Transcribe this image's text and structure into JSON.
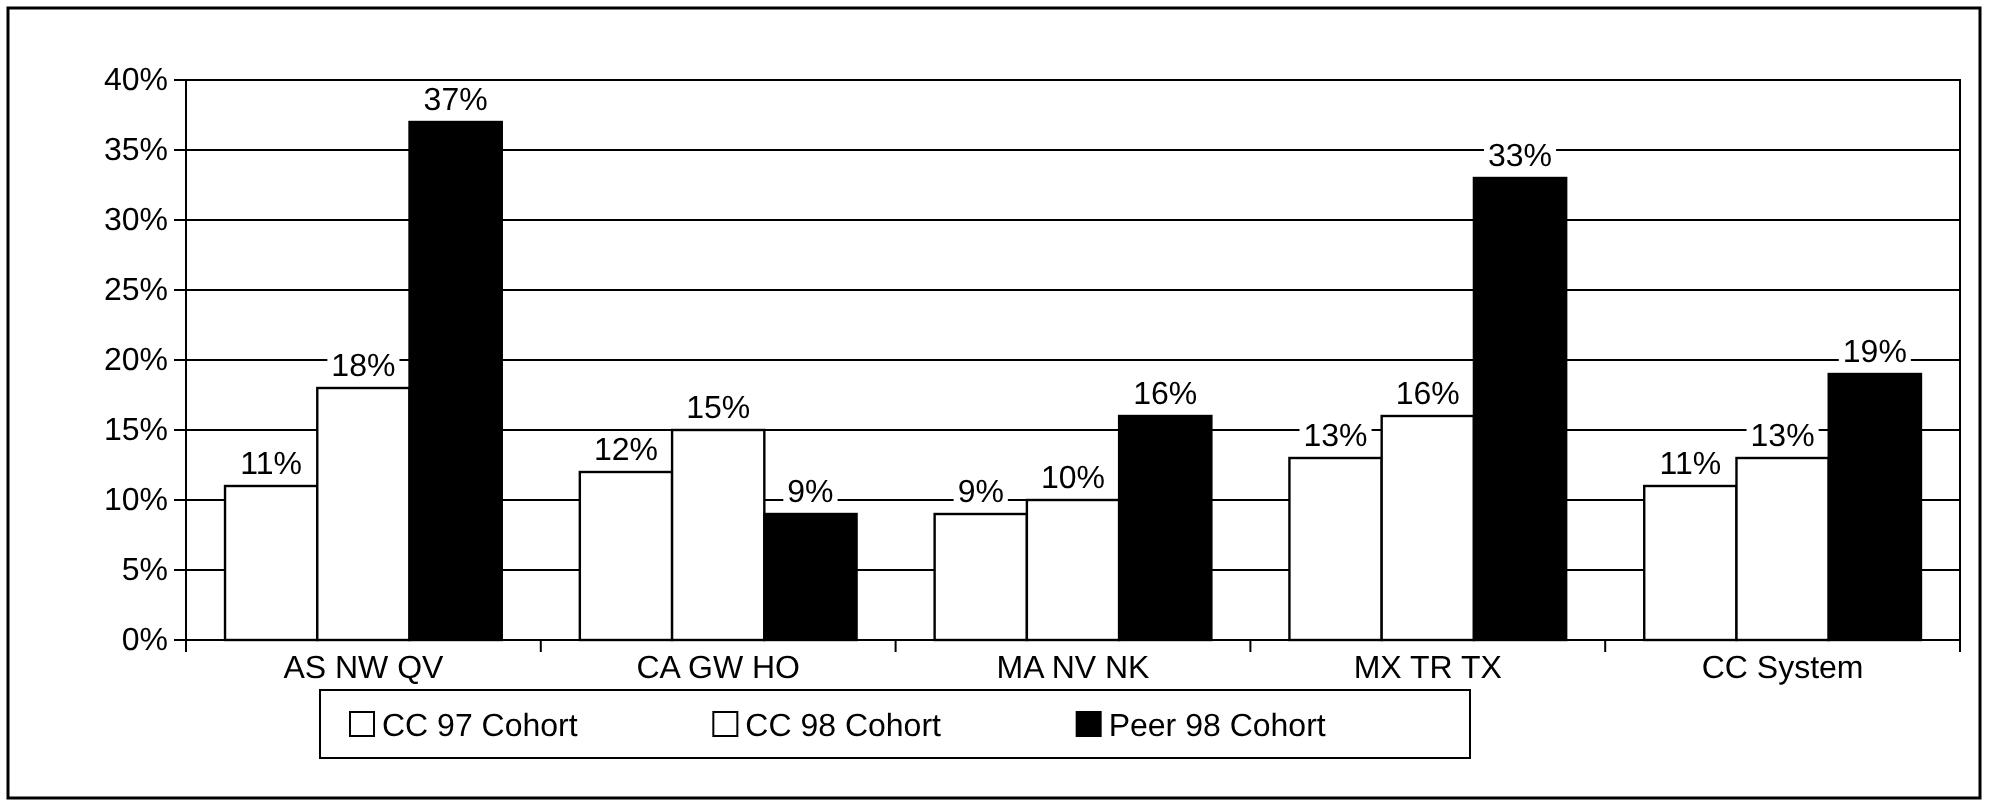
{
  "chart_data": {
    "type": "bar",
    "categories": [
      "AS NW QV",
      "CA GW HO",
      "MA NV NK",
      "MX TR TX",
      "CC System"
    ],
    "series": [
      {
        "name": "CC 97 Cohort",
        "color": "#ffffff",
        "values": [
          11,
          12,
          9,
          13,
          11
        ],
        "value_labels": [
          "11%",
          "12%",
          "9%",
          "13%",
          "11%"
        ]
      },
      {
        "name": "CC 98 Cohort",
        "color": "#ffffff",
        "values": [
          18,
          15,
          10,
          16,
          13
        ],
        "value_labels": [
          "18%",
          "15%",
          "10%",
          "16%",
          "13%"
        ]
      },
      {
        "name": "Peer 98 Cohort",
        "color": "#000000",
        "values": [
          37,
          9,
          16,
          33,
          19
        ],
        "value_labels": [
          "37%",
          "9%",
          "16%",
          "33%",
          "19%"
        ]
      }
    ],
    "ylim": [
      0,
      40
    ],
    "yticks": [
      {
        "value": 0,
        "label": "0%"
      },
      {
        "value": 5,
        "label": "5%"
      },
      {
        "value": 10,
        "label": "10%"
      },
      {
        "value": 15,
        "label": "15%"
      },
      {
        "value": 20,
        "label": "20%"
      },
      {
        "value": 25,
        "label": "25%"
      },
      {
        "value": 30,
        "label": "30%"
      },
      {
        "value": 35,
        "label": "35%"
      },
      {
        "value": 40,
        "label": "40%"
      }
    ],
    "grid": "y",
    "legend": "bottom"
  }
}
